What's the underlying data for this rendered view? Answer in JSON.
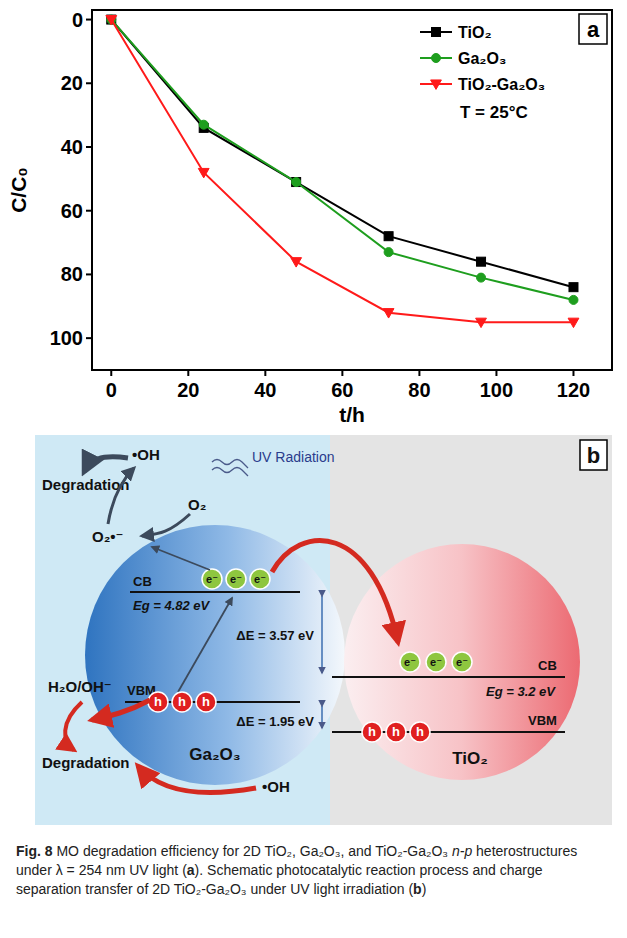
{
  "chart_data": {
    "type": "line",
    "panel": "a",
    "annotation": "T = 25°C",
    "x_label": "t/h",
    "y_label": "C/C₀",
    "x": [
      0,
      24,
      48,
      72,
      96,
      120
    ],
    "series": [
      {
        "name": "TiO₂",
        "color": "#000000",
        "marker": "square",
        "values": [
          0,
          34,
          51,
          68,
          76,
          84
        ]
      },
      {
        "name": "Ga₂O₃",
        "color": "#1e9e1e",
        "marker": "circle",
        "values": [
          0,
          33,
          51,
          73,
          81,
          88
        ]
      },
      {
        "name": "TiO₂-Ga₂O₃",
        "color": "#ff1a1a",
        "marker": "triangle-down",
        "values": [
          0,
          48,
          76,
          92,
          95,
          95
        ]
      }
    ],
    "xlim": [
      -5,
      130
    ],
    "ylim": [
      110,
      -3
    ],
    "xticks": [
      0,
      20,
      40,
      60,
      80,
      100,
      120
    ],
    "yticks": [
      0,
      20,
      40,
      60,
      80,
      100
    ],
    "legend": "upper right",
    "grid": false
  },
  "diagram": {
    "panel": "b",
    "uv": "UV Radiation",
    "materials": [
      {
        "name": "Ga₂O₃",
        "cb": "CB",
        "vbm": "VBM",
        "gap": "Eg = 4.82 eV",
        "electrons": [
          "e⁻",
          "e⁻",
          "e⁻"
        ],
        "holes": [
          "h",
          "h",
          "h"
        ]
      },
      {
        "name": "TiO₂",
        "cb": "CB",
        "vbm": "VBM",
        "gap": "Eg = 3.2 eV",
        "electrons": [
          "e⁻",
          "e⁻",
          "e⁻"
        ],
        "holes": [
          "h",
          "h",
          "h"
        ]
      }
    ],
    "offsets": [
      "ΔE = 3.57 eV",
      "ΔE = 1.95 eV"
    ],
    "reduction": {
      "reactant": "O₂",
      "product": "O₂•⁻",
      "radical": "•OH",
      "result": "Degradation"
    },
    "oxidation": {
      "reactant": "H₂O/OH⁻",
      "radical": "•OH",
      "result": "Degradation"
    }
  },
  "caption": {
    "parts": [
      {
        "text": "Fig. 8",
        "style": "bold"
      },
      {
        "text": " MO degradation efficiency for 2D TiO₂, Ga₂O₃, and TiO₂-Ga₂O₃ ",
        "style": "normal"
      },
      {
        "text": "n-p",
        "style": "italic"
      },
      {
        "text": " heterostructures under λ = 254 nm UV light (",
        "style": "normal"
      },
      {
        "text": "a",
        "style": "bold"
      },
      {
        "text": "). Schematic photocatalytic reaction process and charge separation transfer of 2D TiO₂-Ga₂O₃ under UV light irradiation (",
        "style": "normal"
      },
      {
        "text": "b",
        "style": "bold"
      },
      {
        "text": ")",
        "style": "normal"
      }
    ]
  }
}
